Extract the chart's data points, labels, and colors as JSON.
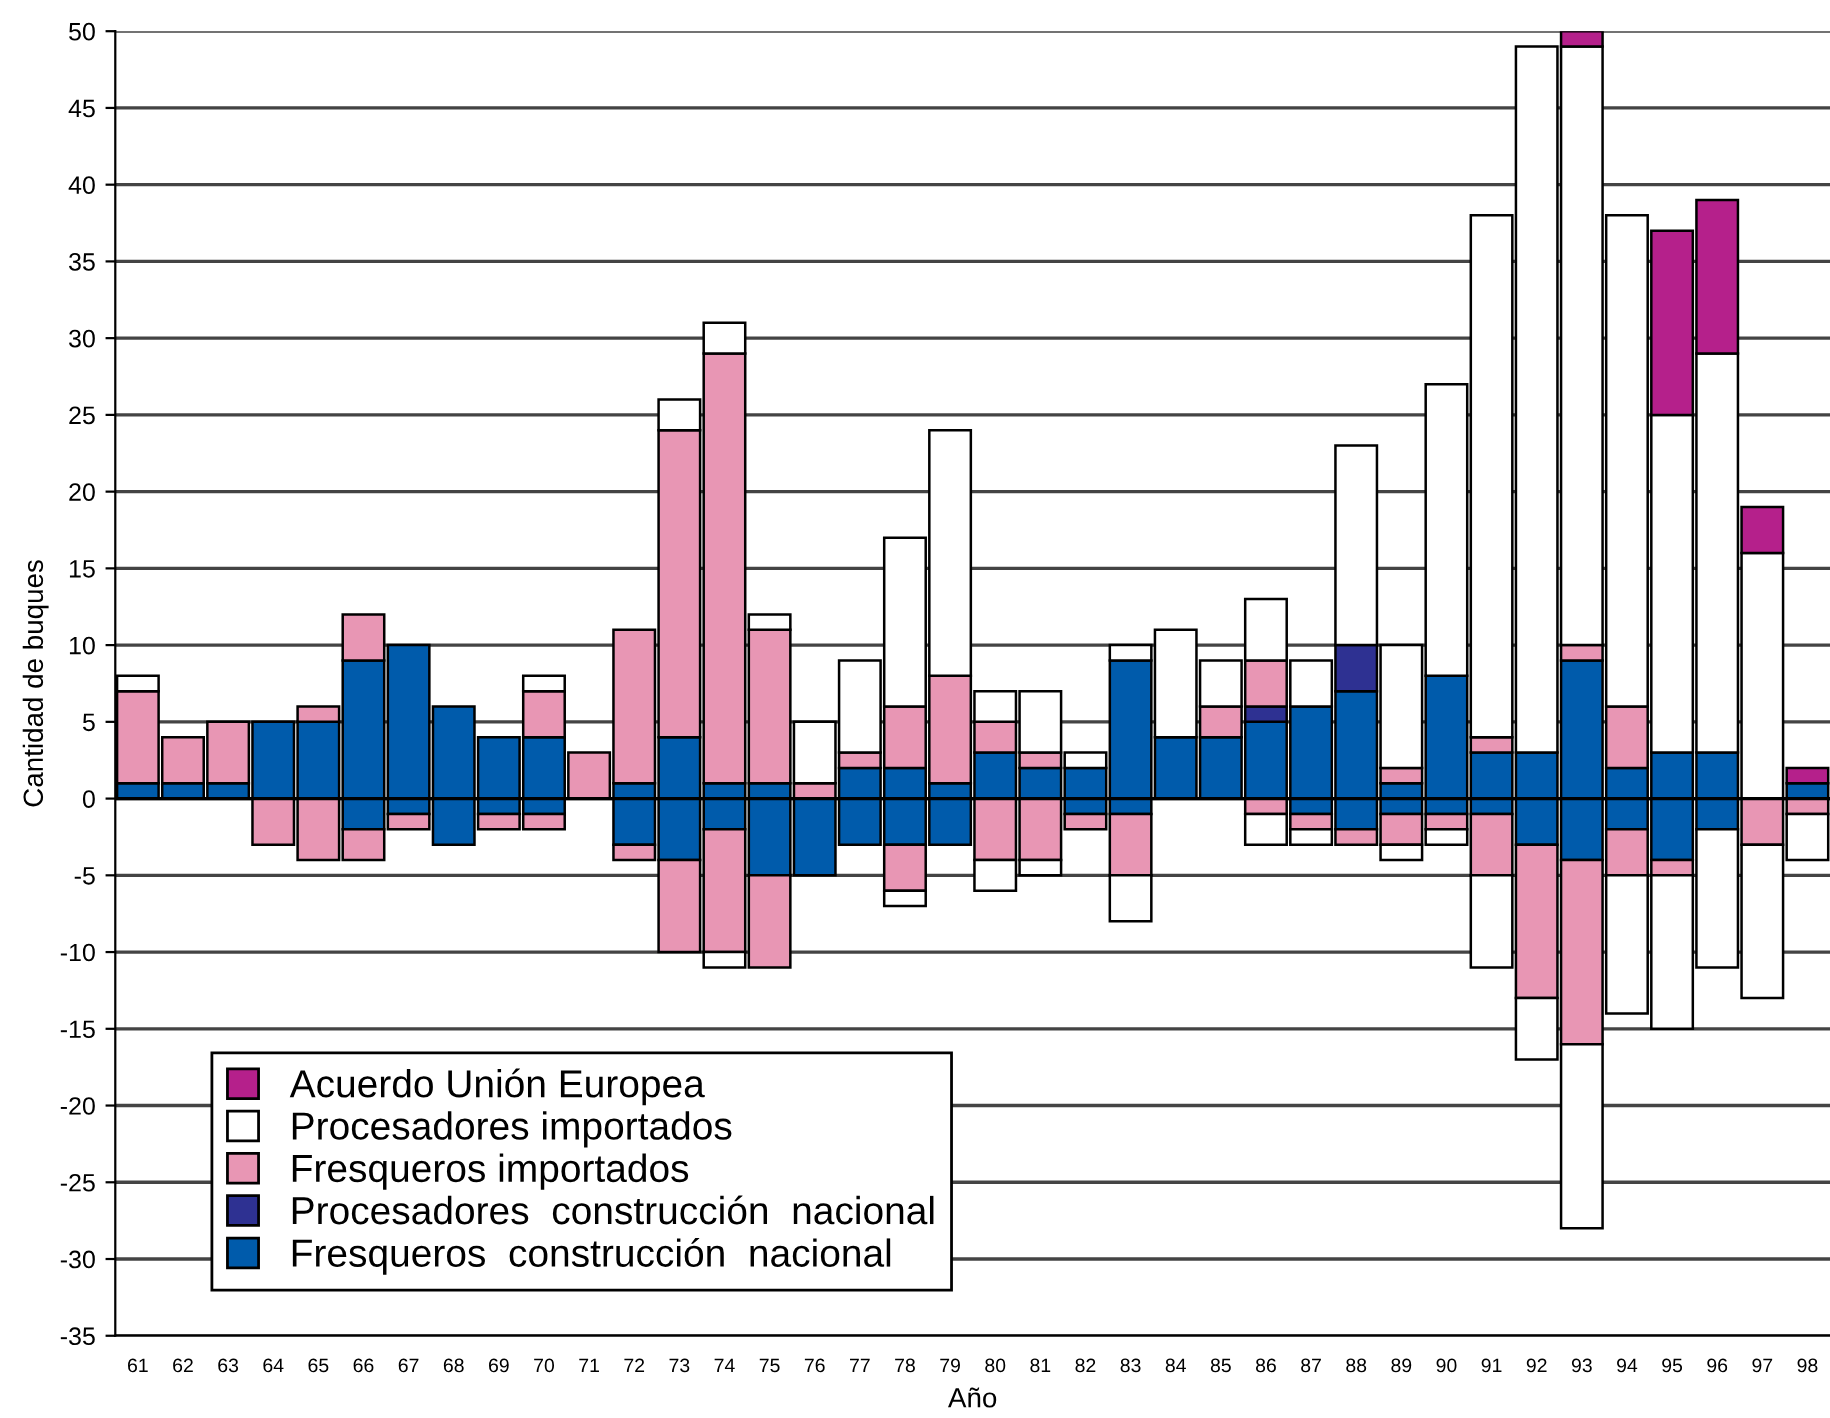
{
  "chart_data": {
    "type": "bar",
    "stacked": true,
    "xlabel": "Año",
    "ylabel": "Cantidad de buques",
    "categories": [
      "61",
      "62",
      "63",
      "64",
      "65",
      "66",
      "67",
      "68",
      "69",
      "70",
      "71",
      "72",
      "73",
      "74",
      "75",
      "76",
      "77",
      "78",
      "79",
      "80",
      "81",
      "82",
      "83",
      "84",
      "85",
      "86",
      "87",
      "88",
      "89",
      "90",
      "91",
      "92",
      "93",
      "94",
      "95",
      "96",
      "97",
      "98"
    ],
    "series": [
      {
        "name": "Fresqueros  construcción  nacional",
        "color": "#005bab",
        "values": [
          1,
          1,
          1,
          5,
          5,
          9,
          10,
          6,
          4,
          4,
          null,
          1,
          4,
          1,
          1,
          null,
          2,
          2,
          1,
          3,
          2,
          2,
          9,
          4,
          4,
          5,
          6,
          7,
          1,
          8,
          3,
          3,
          9,
          2,
          3,
          3,
          null,
          1
        ]
      },
      {
        "name": "Procesadores  construcción  nacional",
        "color": "#2e3192",
        "values": [
          null,
          null,
          null,
          null,
          null,
          null,
          null,
          null,
          null,
          null,
          null,
          null,
          null,
          null,
          null,
          null,
          null,
          null,
          null,
          null,
          null,
          null,
          null,
          null,
          null,
          1,
          null,
          3,
          null,
          null,
          null,
          null,
          null,
          null,
          null,
          null,
          null,
          null
        ]
      },
      {
        "name": "Fresqueros importados",
        "color": "#e896b4",
        "values": [
          6,
          3,
          4,
          null,
          1,
          3,
          null,
          null,
          null,
          3,
          3,
          10,
          20,
          28,
          10,
          1,
          1,
          4,
          7,
          2,
          1,
          null,
          null,
          null,
          2,
          3,
          null,
          null,
          1,
          null,
          1,
          null,
          1,
          4,
          null,
          null,
          null,
          null
        ]
      },
      {
        "name": "Procesadores importados",
        "color": "#ffffff",
        "values": [
          1,
          null,
          null,
          null,
          null,
          null,
          null,
          null,
          null,
          1,
          null,
          null,
          2,
          2,
          1,
          4,
          6,
          11,
          16,
          2,
          4,
          1,
          1,
          7,
          3,
          4,
          3,
          13,
          8,
          19,
          34,
          46,
          39,
          32,
          22,
          26,
          16,
          null
        ]
      },
      {
        "name": "Acuerdo Unión Europea",
        "color": "#b5208b",
        "values": [
          null,
          null,
          null,
          null,
          null,
          null,
          null,
          null,
          null,
          null,
          null,
          null,
          null,
          null,
          null,
          null,
          null,
          null,
          null,
          null,
          null,
          null,
          null,
          null,
          null,
          null,
          null,
          null,
          null,
          null,
          null,
          null,
          1,
          null,
          12,
          10,
          3,
          1
        ]
      },
      {
        "color": "#005bab",
        "values": [
          null,
          null,
          null,
          null,
          null,
          -2,
          -1,
          -3,
          -1,
          -1,
          null,
          -3,
          -4,
          -2,
          -5,
          -5,
          -3,
          -3,
          -3,
          null,
          null,
          -1,
          -1,
          null,
          null,
          null,
          -1,
          -2,
          -1,
          -1,
          -1,
          -3,
          -4,
          -2,
          -4,
          -2,
          null,
          null
        ]
      },
      {
        "color": "#e896b4",
        "values": [
          null,
          null,
          null,
          -3,
          -4,
          -2,
          -1,
          null,
          -1,
          -1,
          null,
          -1,
          -6,
          -8,
          -6,
          null,
          null,
          -3,
          null,
          -4,
          -4,
          -1,
          -4,
          null,
          null,
          -1,
          -1,
          -1,
          -2,
          -1,
          -4,
          -10,
          -12,
          -3,
          -1,
          null,
          -3,
          -1
        ]
      },
      {
        "color": "#ffffff",
        "values": [
          null,
          null,
          null,
          null,
          null,
          null,
          null,
          null,
          null,
          null,
          null,
          null,
          null,
          -1,
          null,
          null,
          null,
          -1,
          null,
          -2,
          -1,
          null,
          -3,
          null,
          null,
          -2,
          -1,
          null,
          -1,
          -1,
          -6,
          -4,
          -12,
          -9,
          -10,
          -9,
          -10,
          -3
        ]
      }
    ],
    "ylim": [
      -35,
      50
    ],
    "yticks": [
      -35,
      -30,
      -25,
      -20,
      -15,
      -10,
      -5,
      0,
      5,
      10,
      15,
      20,
      25,
      30,
      35,
      40,
      45,
      50
    ],
    "grid": "y",
    "legend": "bottom left"
  }
}
